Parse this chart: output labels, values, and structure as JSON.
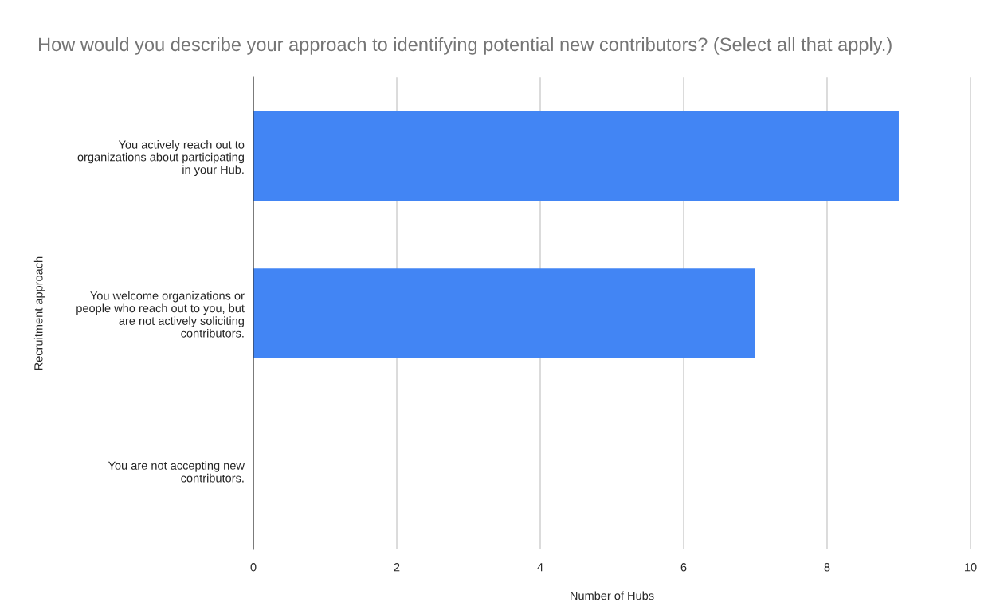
{
  "chart_data": {
    "type": "bar",
    "orientation": "horizontal",
    "title": "How would you describe your approach to identifying potential new contributors? (Select all that apply.)",
    "xlabel": "Number of Hubs",
    "ylabel": "Recruitment approach",
    "categories": [
      "You actively reach out to\norganizations about participating\nin your Hub.",
      "You welcome organizations or\npeople who reach out to you, but\nare not actively soliciting\ncontributors.",
      "You are not accepting new\ncontributors."
    ],
    "values": [
      9,
      7,
      0
    ],
    "color": "#4285f4",
    "xlim": [
      0,
      10
    ],
    "xticks": [
      0,
      2,
      4,
      6,
      8,
      10
    ],
    "grid": "x",
    "legend": false
  }
}
